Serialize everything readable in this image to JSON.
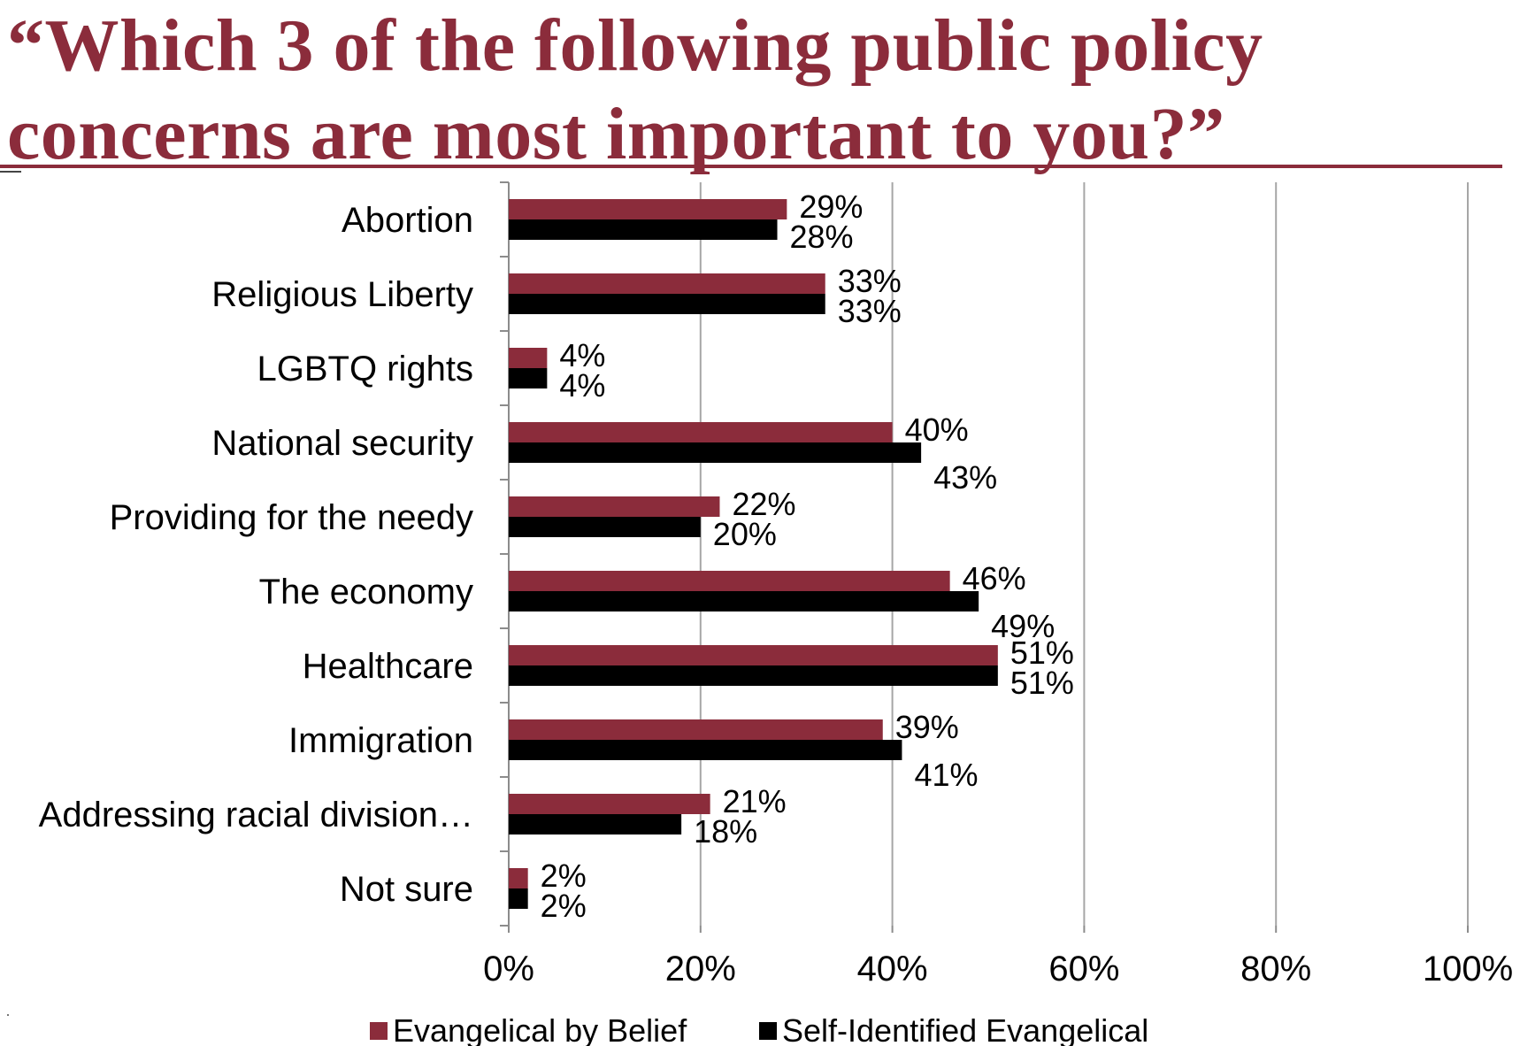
{
  "title": {
    "line1": "“Which 3 of the following public policy",
    "line2": "concerns are most important to you?”"
  },
  "colors": {
    "accent": "#8b2c3b",
    "series_1": "#8b2c3b",
    "series_2": "#000000",
    "grid": "#a6a6a6"
  },
  "legend": {
    "placement": "bottom",
    "items": [
      {
        "label": "Evangelical by Belief",
        "color": "#8b2c3b"
      },
      {
        "label": "Self-Identified Evangelical",
        "color": "#000000"
      }
    ]
  },
  "chart_data": {
    "type": "bar",
    "orientation": "horizontal",
    "title": "“Which 3 of the following public policy concerns are most important to you?”",
    "categories": [
      "Abortion",
      "Religious Liberty",
      "LGBTQ rights",
      "National security",
      "Providing for the needy",
      "The economy",
      "Healthcare",
      "Immigration",
      "Addressing racial division…",
      "Not sure"
    ],
    "series": [
      {
        "name": "Evangelical by Belief",
        "color": "#8b2c3b",
        "values": [
          29,
          33,
          4,
          40,
          22,
          46,
          51,
          39,
          21,
          2
        ],
        "labels": [
          "29%",
          "33%",
          "4%",
          "40%",
          "22%",
          "46%",
          "51%",
          "39%",
          "21%",
          "2%"
        ]
      },
      {
        "name": "Self-Identified Evangelical",
        "color": "#000000",
        "values": [
          28,
          33,
          4,
          43,
          20,
          49,
          51,
          41,
          18,
          2
        ],
        "labels": [
          "28%",
          "33%",
          "4%",
          "43%",
          "20%",
          "49%",
          "51%",
          "41%",
          "18%",
          "2%"
        ]
      }
    ],
    "xlim": [
      0,
      100
    ],
    "ticks": [
      0,
      20,
      40,
      60,
      80,
      100
    ],
    "tick_labels": [
      "0%",
      "20%",
      "40%",
      "60%",
      "80%",
      "100%"
    ],
    "grid": "vertical",
    "legend": "bottom"
  }
}
